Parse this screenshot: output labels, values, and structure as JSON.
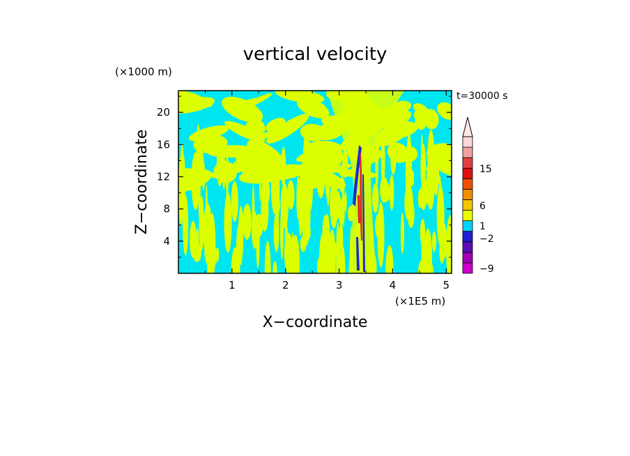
{
  "chart_data": {
    "type": "heatmap",
    "title": "vertical velocity",
    "xlabel": "X−coordinate",
    "ylabel": "Z−coordinate",
    "x_unit": "(×1E5 m)",
    "y_unit": "(×1000 m)",
    "time_label": "t=30000 s",
    "xlim": [
      0,
      5.1
    ],
    "ylim": [
      0,
      22.7
    ],
    "x_ticks": [
      "1",
      "2",
      "3",
      "4",
      "5"
    ],
    "y_ticks": [
      "4",
      "8",
      "12",
      "16",
      "20"
    ],
    "colorbar_labels": [
      "15",
      "6",
      "1",
      "−2",
      "−9"
    ],
    "colorbar_colors": [
      "#cc00cc",
      "#a000b4",
      "#5a10b4",
      "#2020d2",
      "#00d0ff",
      "#e6ff00",
      "#f0c800",
      "#f09000",
      "#f05000",
      "#e01010",
      "#e04040",
      "#f0a0a0",
      "#ffd8d8"
    ],
    "field_colors": {
      "negative_small": "#00e6f0",
      "positive_small": "#dcff00",
      "strong_negative": "#1a2ad0",
      "strong_positive": "#e02020"
    },
    "feature": "narrow updraft/downdraft column near x = 3.4"
  }
}
